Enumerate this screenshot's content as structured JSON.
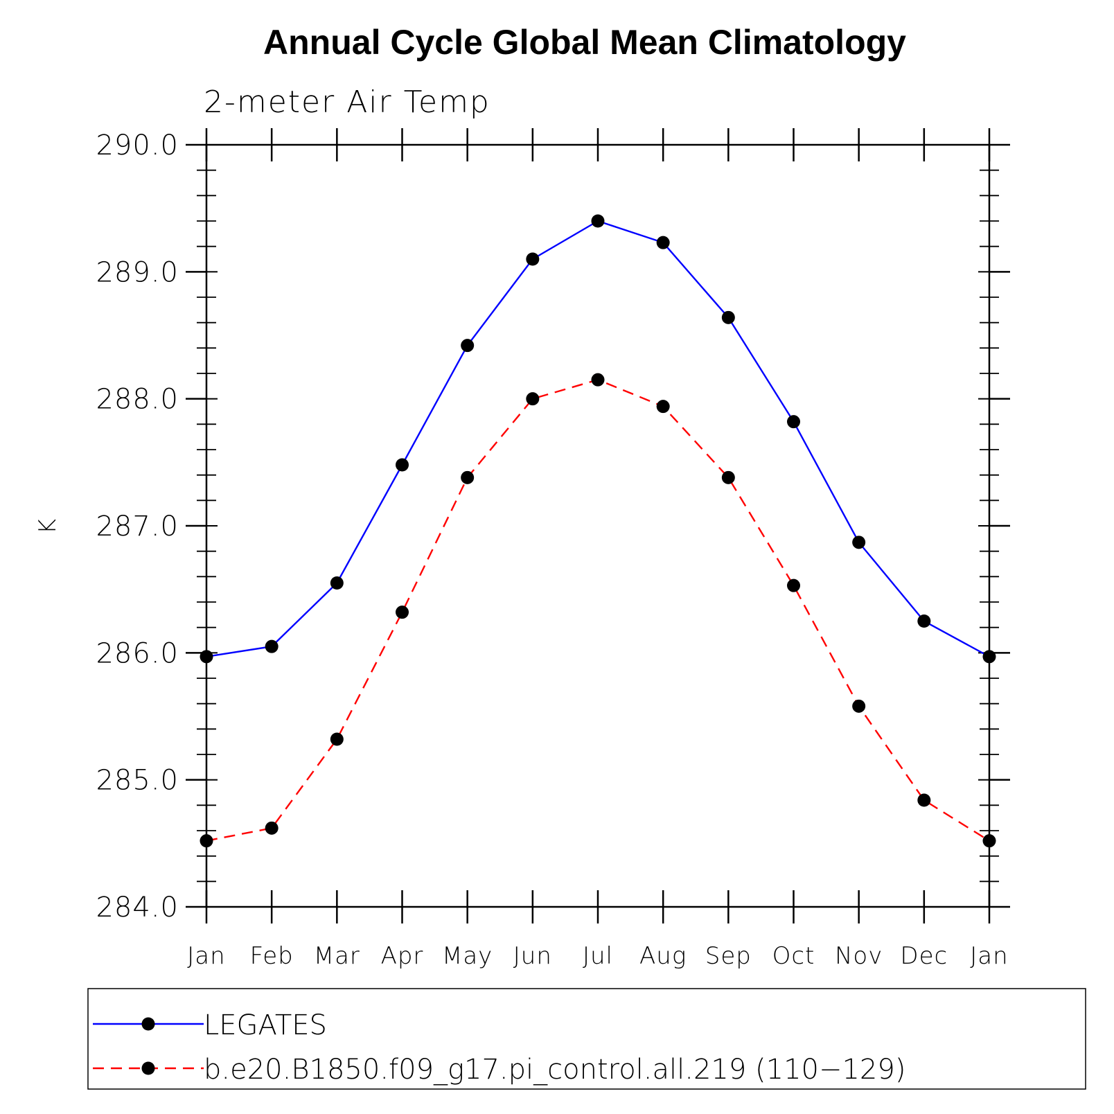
{
  "chart_data": {
    "type": "line",
    "title": "Annual Cycle Global Mean Climatology",
    "subtitle": "2-meter Air Temp",
    "xlabel": "",
    "ylabel": "K",
    "categories": [
      "Jan",
      "Feb",
      "Mar",
      "Apr",
      "May",
      "Jun",
      "Jul",
      "Aug",
      "Sep",
      "Oct",
      "Nov",
      "Dec",
      "Jan"
    ],
    "ylim": [
      284.0,
      290.0
    ],
    "yticks": [
      "284.0",
      "285.0",
      "286.0",
      "287.0",
      "288.0",
      "289.0",
      "290.0"
    ],
    "grid": false,
    "legend_position": "bottom",
    "series": [
      {
        "name": "LEGATES",
        "color": "#0000ff",
        "dash": "solid",
        "marker": "filled-circle",
        "values": [
          285.97,
          286.05,
          286.55,
          287.48,
          288.42,
          289.1,
          289.4,
          289.23,
          288.64,
          287.82,
          286.87,
          286.25,
          285.97
        ]
      },
      {
        "name": "b.e20.B1850.f09_g17.pi_control.all.219 (110−129)",
        "color": "#ff0000",
        "dash": "dashed",
        "marker": "filled-circle",
        "values": [
          284.52,
          284.62,
          285.32,
          286.32,
          287.38,
          288.0,
          288.15,
          287.94,
          287.38,
          286.53,
          285.58,
          284.84,
          284.52
        ]
      }
    ]
  }
}
